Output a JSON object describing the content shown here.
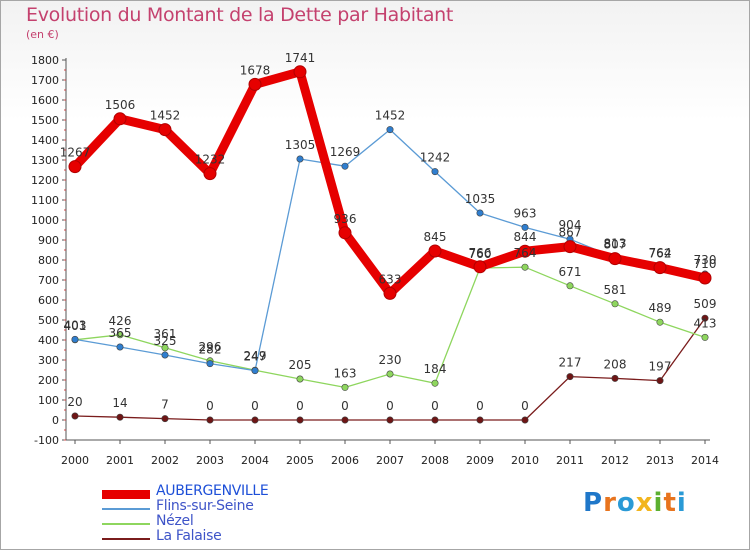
{
  "title": "Evolution du Montant de la Dette par Habitant",
  "unit": "(en €)",
  "brand": {
    "text": "Proxiti",
    "letter_colors": [
      "#1f77c9",
      "#e8741e",
      "#2a9ad6",
      "#f2b51e",
      "#5cb030",
      "#e8741e",
      "#2a9ad6"
    ]
  },
  "chart_data": {
    "type": "line",
    "title": "Evolution du Montant de la Dette par Habitant",
    "ylabel": "(en €)",
    "xlabel": "",
    "ylim": [
      -100,
      1800
    ],
    "yticks": [
      -100,
      0,
      100,
      200,
      300,
      400,
      500,
      600,
      700,
      800,
      900,
      1000,
      1100,
      1200,
      1300,
      1400,
      1500,
      1600,
      1700,
      1800
    ],
    "x": [
      2000,
      2001,
      2002,
      2003,
      2004,
      2005,
      2006,
      2007,
      2008,
      2009,
      2010,
      2011,
      2012,
      2013,
      2014
    ],
    "grid": false,
    "legend_position": "bottom-left",
    "series": [
      {
        "name": "AUBERGENVILLE",
        "color": "#e60000",
        "marker": "#e60000",
        "values": [
          1267,
          1506,
          1452,
          1232,
          1678,
          1741,
          936,
          633,
          845,
          766,
          844,
          867,
          807,
          762,
          710
        ]
      },
      {
        "name": "Flins-sur-Seine",
        "color": "#5b9bd5",
        "marker": "#2f7ecf",
        "values": [
          403,
          365,
          325,
          282,
          247,
          1305,
          1269,
          1452,
          1242,
          1035,
          963,
          904,
          813,
          764,
          730
        ]
      },
      {
        "name": "Nézel",
        "color": "#8ed65e",
        "marker": "#8ed65e",
        "values": [
          401,
          426,
          361,
          296,
          249,
          205,
          163,
          230,
          184,
          760,
          764,
          671,
          581,
          489,
          413
        ]
      },
      {
        "name": "La Falaise",
        "color": "#7a1c1c",
        "marker": "#6e1515",
        "values": [
          20,
          14,
          7,
          0,
          0,
          0,
          0,
          0,
          0,
          0,
          0,
          217,
          208,
          197,
          509
        ]
      }
    ]
  }
}
